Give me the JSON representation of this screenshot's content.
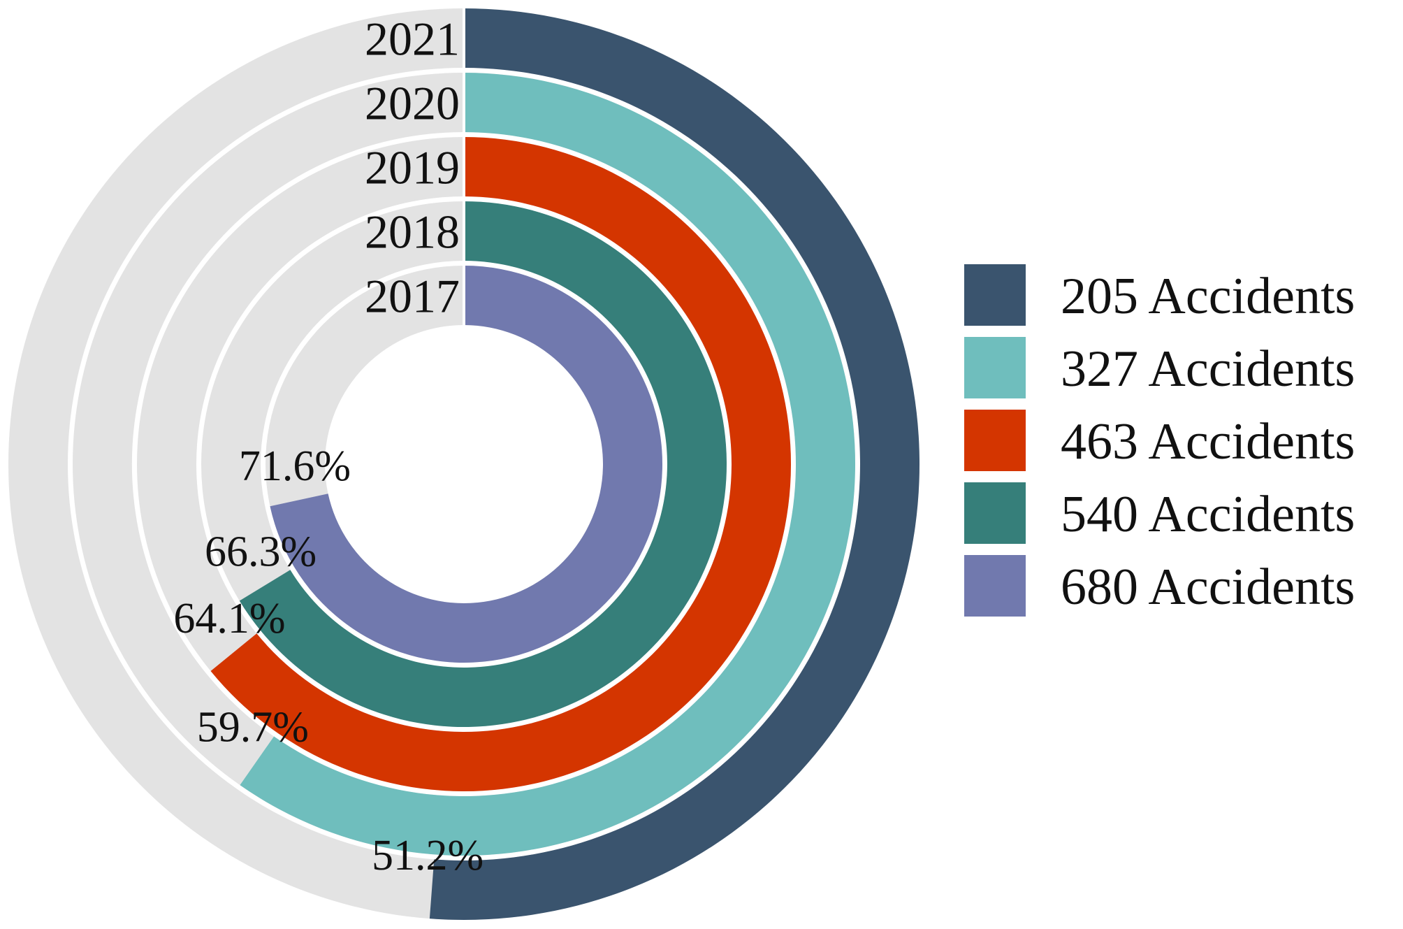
{
  "chart_data": {
    "type": "radial_bar",
    "title": "",
    "track_color": "#e3e3e3",
    "series": [
      {
        "year": "2021",
        "percent": 51.2,
        "percent_label": "51.2%",
        "accidents_label": "205 Accidents",
        "color": "#3a546e"
      },
      {
        "year": "2020",
        "percent": 59.7,
        "percent_label": "59.7%",
        "accidents_label": "327 Accidents",
        "color": "#6fbebd"
      },
      {
        "year": "2019",
        "percent": 64.1,
        "percent_label": "64.1%",
        "accidents_label": "463 Accidents",
        "color": "#d43500"
      },
      {
        "year": "2018",
        "percent": 66.3,
        "percent_label": "66.3%",
        "accidents_label": "540 Accidents",
        "color": "#367f7a"
      },
      {
        "year": "2017",
        "percent": 71.6,
        "percent_label": "71.6%",
        "accidents_label": "680 Accidents",
        "color": "#7179ae"
      }
    ],
    "legend_position": "right",
    "grid": false
  }
}
